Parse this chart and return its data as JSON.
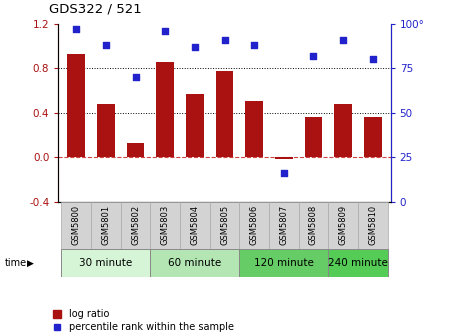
{
  "title": "GDS322 / 521",
  "samples": [
    "GSM5800",
    "GSM5801",
    "GSM5802",
    "GSM5803",
    "GSM5804",
    "GSM5805",
    "GSM5806",
    "GSM5807",
    "GSM5808",
    "GSM5809",
    "GSM5810"
  ],
  "log_ratio": [
    0.93,
    0.48,
    0.13,
    0.85,
    0.57,
    0.77,
    0.5,
    -0.02,
    0.36,
    0.48,
    0.36
  ],
  "percentile": [
    97,
    88,
    70,
    96,
    87,
    91,
    88,
    16,
    82,
    91,
    80
  ],
  "bar_color": "#aa1111",
  "dot_color": "#2222cc",
  "ylim_left": [
    -0.4,
    1.2
  ],
  "ylim_right": [
    0,
    100
  ],
  "yticks_left": [
    -0.4,
    0.0,
    0.4,
    0.8,
    1.2
  ],
  "yticks_right": [
    0,
    25,
    50,
    75,
    100
  ],
  "ytick_labels_right": [
    "0",
    "25",
    "50",
    "75",
    "100°"
  ],
  "groups": [
    {
      "label": "30 minute",
      "start": 0,
      "end": 3,
      "color": "#d6f5d6"
    },
    {
      "label": "60 minute",
      "start": 3,
      "end": 6,
      "color": "#b3e6b3"
    },
    {
      "label": "120 minute",
      "start": 6,
      "end": 9,
      "color": "#66cc66"
    },
    {
      "label": "240 minute",
      "start": 9,
      "end": 11,
      "color": "#55cc55"
    }
  ],
  "time_label": "time",
  "legend_bar_label": "log ratio",
  "legend_dot_label": "percentile rank within the sample",
  "dotted_lines": [
    0.4,
    0.8
  ],
  "zero_line_color": "#cc4444",
  "bg_color": "#ffffff",
  "label_bg": "#d3d3d3",
  "label_edge": "#aaaaaa"
}
